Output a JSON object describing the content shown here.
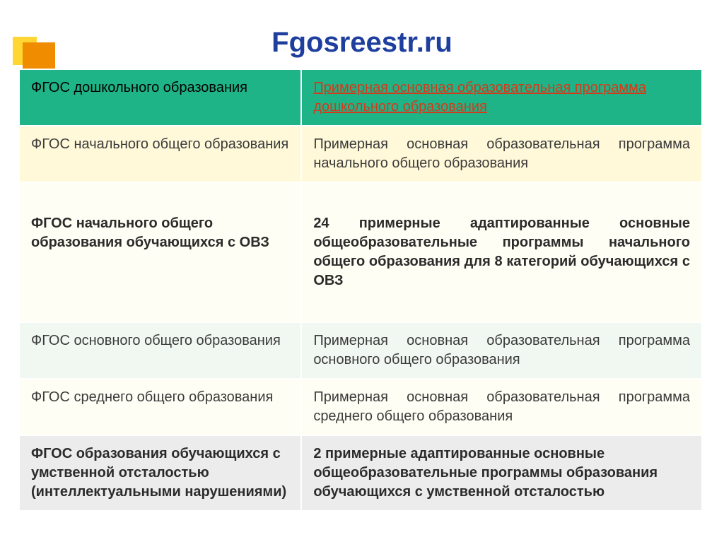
{
  "title": {
    "text": "Fgosreestr.ru",
    "color": "#1f3f9e",
    "fontsize": 40
  },
  "decoration": {
    "yellow": "#ffd633",
    "orange": "#f08c00"
  },
  "table": {
    "rows": [
      {
        "left": "ФГОС дошкольного образования",
        "right": "Примерная основная образовательная программа дошкольного образования",
        "bg": "#1fb487",
        "left_color": "#000000",
        "right_color": "#d43a1a",
        "right_is_link": true,
        "right_justify": false,
        "bold": false
      },
      {
        "left": "ФГОС начального общего образования",
        "right": "Примерная основная образовательная программа начального общего образования",
        "bg": "#fff9d9",
        "left_color": "#3b3b3b",
        "right_color": "#3b3b3b",
        "right_is_link": false,
        "right_justify": true,
        "bold": false
      },
      {
        "left": "ФГОС начального общего образования обучающихся с ОВЗ",
        "right": "24 примерные адаптированные основные общеобразовательные программы начального общего образования для 8 категорий обучающихся с ОВЗ",
        "bg": "#fffef4",
        "left_color": "#2b2b2b",
        "right_color": "#2b2b2b",
        "right_is_link": false,
        "right_justify": true,
        "bold": true
      },
      {
        "left": "ФГОС основного общего образования",
        "right": "Примерная основная образовательная программа основного общего образования",
        "bg": "#f1f8f1",
        "left_color": "#3b3b3b",
        "right_color": "#3b3b3b",
        "right_is_link": false,
        "right_justify": true,
        "bold": false
      },
      {
        "left": "ФГОС среднего общего образования",
        "right": "Примерная основная образовательная программа среднего общего образования",
        "bg": "#fffef4",
        "left_color": "#3b3b3b",
        "right_color": "#3b3b3b",
        "right_is_link": false,
        "right_justify": true,
        "bold": false
      },
      {
        "left": "ФГОС образования обучающихся с умственной отсталостью (интеллектуальными нарушениями)",
        "right": "2 примерные адаптированные основные общеобразовательные программы образования обучающихся с умственной отсталостью",
        "bg": "#ececec",
        "left_color": "#2b2b2b",
        "right_color": "#2b2b2b",
        "right_is_link": false,
        "right_justify": false,
        "bold": true
      }
    ],
    "border_color": "#ffffff"
  }
}
